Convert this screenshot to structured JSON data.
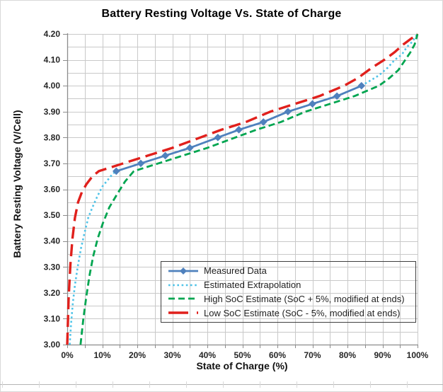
{
  "chart_data": {
    "type": "line",
    "title": "Battery Resting Voltage Vs. State of Charge",
    "xlabel": "State of Charge (%)",
    "ylabel": "Battery Resting Voltage (V/Cell)",
    "xlim": [
      0,
      100
    ],
    "ylim": [
      3.0,
      4.2
    ],
    "grid": "on",
    "x_minor_step": 5,
    "y_minor_step": 0.05,
    "legend_position": "inside-bottom-center",
    "x_ticks": {
      "values": [
        0,
        10,
        20,
        30,
        40,
        50,
        60,
        70,
        80,
        90,
        100
      ],
      "labels": [
        "0%",
        "10%",
        "20%",
        "30%",
        "40%",
        "50%",
        "60%",
        "70%",
        "80%",
        "90%",
        "100%"
      ]
    },
    "y_ticks": {
      "values": [
        3.0,
        3.1,
        3.2,
        3.3,
        3.4,
        3.5,
        3.6,
        3.7,
        3.8,
        3.9,
        4.0,
        4.1,
        4.2
      ],
      "labels": [
        "3.00",
        "3.10",
        "3.20",
        "3.30",
        "3.40",
        "3.50",
        "3.60",
        "3.70",
        "3.80",
        "3.90",
        "4.00",
        "4.10",
        "4.20"
      ]
    },
    "colors": {
      "grid": "#c9c9c9",
      "axis": "#8c8c8c",
      "tick_text": "#262626",
      "frame": "#d9d9d9",
      "sheet_line": "#b5b5b5"
    },
    "series": [
      {
        "name": "Measured Data",
        "color": "#4f81bd",
        "style": "solid",
        "width": 2.8,
        "marker": "diamond",
        "legend_dash": "none",
        "points": [
          [
            14,
            3.67
          ],
          [
            21,
            3.7
          ],
          [
            28,
            3.73
          ],
          [
            35,
            3.76
          ],
          [
            43,
            3.8
          ],
          [
            49,
            3.83
          ],
          [
            56,
            3.86
          ],
          [
            63,
            3.9
          ],
          [
            70,
            3.93
          ],
          [
            77,
            3.96
          ],
          [
            84,
            4.0
          ]
        ]
      },
      {
        "name": "Estimated Extrapolation",
        "color": "#4fc3e8",
        "style": "dotted",
        "width": 2.6,
        "marker": "none",
        "legend_dash": "2.6 3.6",
        "points": [
          [
            0.7,
            3.0
          ],
          [
            1.1,
            3.08
          ],
          [
            1.6,
            3.16
          ],
          [
            2.2,
            3.23
          ],
          [
            3.0,
            3.3
          ],
          [
            3.9,
            3.37
          ],
          [
            4.9,
            3.43
          ],
          [
            6.0,
            3.49
          ],
          [
            7.2,
            3.53
          ],
          [
            8.5,
            3.57
          ],
          [
            10.0,
            3.61
          ],
          [
            11.8,
            3.64
          ],
          [
            13.0,
            3.66
          ],
          [
            14,
            3.67
          ],
          [
            21,
            3.7
          ],
          [
            28,
            3.73
          ],
          [
            35,
            3.76
          ],
          [
            43,
            3.8
          ],
          [
            49,
            3.83
          ],
          [
            56,
            3.86
          ],
          [
            63,
            3.9
          ],
          [
            70,
            3.93
          ],
          [
            77,
            3.96
          ],
          [
            84,
            4.0
          ],
          [
            86.5,
            4.02
          ],
          [
            89,
            4.04
          ],
          [
            91.5,
            4.07
          ],
          [
            93.5,
            4.1
          ],
          [
            95.5,
            4.12
          ],
          [
            97,
            4.15
          ],
          [
            98.5,
            4.17
          ],
          [
            100,
            4.2
          ]
        ]
      },
      {
        "name": "High SoC Estimate (SoC + 5%, modified at ends)",
        "color": "#00a550",
        "style": "dashed",
        "width": 2.8,
        "marker": "none",
        "legend_dash": "9 5",
        "points": [
          [
            3.8,
            3.0
          ],
          [
            4.6,
            3.1
          ],
          [
            5.5,
            3.19
          ],
          [
            6.4,
            3.27
          ],
          [
            7.4,
            3.34
          ],
          [
            8.7,
            3.41
          ],
          [
            10.2,
            3.47
          ],
          [
            12.0,
            3.53
          ],
          [
            14.2,
            3.58
          ],
          [
            16.5,
            3.63
          ],
          [
            19,
            3.67
          ],
          [
            26,
            3.7
          ],
          [
            33,
            3.73
          ],
          [
            40,
            3.76
          ],
          [
            48,
            3.8
          ],
          [
            54,
            3.83
          ],
          [
            61,
            3.86
          ],
          [
            68,
            3.9
          ],
          [
            75,
            3.93
          ],
          [
            82,
            3.96
          ],
          [
            89,
            4.0
          ],
          [
            92,
            4.03
          ],
          [
            94.5,
            4.06
          ],
          [
            96.5,
            4.1
          ],
          [
            98,
            4.13
          ],
          [
            99.2,
            4.16
          ],
          [
            100,
            4.2
          ]
        ]
      },
      {
        "name": "Low SoC Estimate (SoC - 5%, modified at ends)",
        "color": "#e0201c",
        "style": "long-dash",
        "width": 3.4,
        "marker": "none",
        "legend_dash": "28 12",
        "points": [
          [
            0,
            3.0
          ],
          [
            0.4,
            3.18
          ],
          [
            0.9,
            3.31
          ],
          [
            1.5,
            3.41
          ],
          [
            2.2,
            3.49
          ],
          [
            3.1,
            3.55
          ],
          [
            4.2,
            3.59
          ],
          [
            5.5,
            3.62
          ],
          [
            7.2,
            3.65
          ],
          [
            9,
            3.67
          ],
          [
            16,
            3.7
          ],
          [
            23,
            3.73
          ],
          [
            30,
            3.76
          ],
          [
            38,
            3.8
          ],
          [
            44,
            3.83
          ],
          [
            51,
            3.86
          ],
          [
            58,
            3.9
          ],
          [
            65,
            3.93
          ],
          [
            72,
            3.96
          ],
          [
            79,
            4.0
          ],
          [
            83,
            4.03
          ],
          [
            87,
            4.07
          ],
          [
            90.5,
            4.1
          ],
          [
            93.5,
            4.13
          ],
          [
            96,
            4.16
          ],
          [
            98,
            4.18
          ],
          [
            100,
            4.2
          ]
        ]
      }
    ]
  }
}
